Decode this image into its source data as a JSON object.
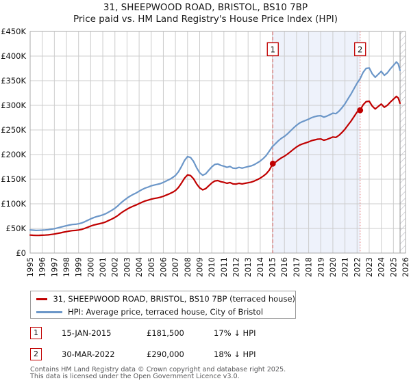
{
  "chart_data": {
    "type": "line",
    "title": "31, SHEEPWOOD ROAD, BRISTOL, BS10 7BP",
    "subtitle": "Price paid vs. HM Land Registry's House Price Index (HPI)",
    "xlabel": "",
    "ylabel": "",
    "xlim": [
      1995,
      2026
    ],
    "ylim_gbp": [
      0,
      450000
    ],
    "grid": true,
    "x_ticks": [
      1995,
      1996,
      1997,
      1998,
      1999,
      2000,
      2001,
      2002,
      2003,
      2004,
      2005,
      2006,
      2007,
      2008,
      2009,
      2010,
      2011,
      2012,
      2013,
      2014,
      2015,
      2016,
      2017,
      2018,
      2019,
      2020,
      2021,
      2022,
      2023,
      2024,
      2025,
      2026
    ],
    "y_ticks_gbpk": [
      [
        0,
        "£0"
      ],
      [
        50,
        "£50K"
      ],
      [
        100,
        "£100K"
      ],
      [
        150,
        "£150K"
      ],
      [
        200,
        "£200K"
      ],
      [
        250,
        "£250K"
      ],
      [
        300,
        "£300K"
      ],
      [
        350,
        "£350K"
      ],
      [
        400,
        "£400K"
      ],
      [
        450,
        "£450K"
      ]
    ],
    "shaded_span": {
      "from_year": 2015.04,
      "to_year": 2022.25
    },
    "hatch_span": {
      "from_year": 2025.55,
      "to_year": 2026
    },
    "series": [
      {
        "name": "31, SHEEPWOOD ROAD, BRISTOL, BS10 7BP (terraced house)",
        "color": "#c00000",
        "points_year_gbpk": [
          [
            1995,
            36.5
          ],
          [
            1995.25,
            36.1
          ],
          [
            1995.5,
            35.8
          ],
          [
            1995.75,
            36
          ],
          [
            1996,
            36.2
          ],
          [
            1996.25,
            36.5
          ],
          [
            1996.5,
            37
          ],
          [
            1996.75,
            37.8
          ],
          [
            1997,
            38.6
          ],
          [
            1997.25,
            39.8
          ],
          [
            1997.5,
            41
          ],
          [
            1997.75,
            42.3
          ],
          [
            1998,
            43.5
          ],
          [
            1998.25,
            44.7
          ],
          [
            1998.5,
            45.6
          ],
          [
            1998.75,
            46
          ],
          [
            1999,
            46.8
          ],
          [
            1999.25,
            48
          ],
          [
            1999.5,
            50
          ],
          [
            1999.75,
            52.4
          ],
          [
            2000,
            54.8
          ],
          [
            2000.25,
            56.8
          ],
          [
            2000.5,
            58.4
          ],
          [
            2000.75,
            59.7
          ],
          [
            2001,
            61.3
          ],
          [
            2001.25,
            63.4
          ],
          [
            2001.5,
            66.2
          ],
          [
            2001.75,
            69
          ],
          [
            2002,
            72.3
          ],
          [
            2002.25,
            76.4
          ],
          [
            2002.5,
            81.2
          ],
          [
            2002.75,
            85.3
          ],
          [
            2003,
            89
          ],
          [
            2003.25,
            92.3
          ],
          [
            2003.5,
            95.2
          ],
          [
            2003.75,
            97.7
          ],
          [
            2004,
            100.5
          ],
          [
            2004.25,
            103.4
          ],
          [
            2004.5,
            105.8
          ],
          [
            2004.75,
            107.5
          ],
          [
            2005,
            109.5
          ],
          [
            2005.25,
            110.8
          ],
          [
            2005.5,
            112
          ],
          [
            2005.75,
            113.3
          ],
          [
            2006,
            115.3
          ],
          [
            2006.25,
            117.8
          ],
          [
            2006.5,
            120.3
          ],
          [
            2006.75,
            123.2
          ],
          [
            2007,
            126.9
          ],
          [
            2007.25,
            133.2
          ],
          [
            2007.5,
            142.2
          ],
          [
            2007.75,
            152.1
          ],
          [
            2008,
            158.8
          ],
          [
            2008.25,
            157.3
          ],
          [
            2008.5,
            150.8
          ],
          [
            2008.75,
            140.3
          ],
          [
            2009,
            132.3
          ],
          [
            2009.25,
            128.3
          ],
          [
            2009.5,
            130.8
          ],
          [
            2009.75,
            136.5
          ],
          [
            2010,
            142.3
          ],
          [
            2010.25,
            146.4
          ],
          [
            2010.5,
            147.2
          ],
          [
            2010.75,
            144.8
          ],
          [
            2011,
            143.6
          ],
          [
            2011.25,
            141.6
          ],
          [
            2011.5,
            143.2
          ],
          [
            2011.75,
            140.4
          ],
          [
            2012,
            140
          ],
          [
            2012.25,
            141.6
          ],
          [
            2012.5,
            140.4
          ],
          [
            2012.75,
            141.6
          ],
          [
            2013,
            142.8
          ],
          [
            2013.25,
            144
          ],
          [
            2013.5,
            146.1
          ],
          [
            2013.75,
            148.9
          ],
          [
            2014,
            152.2
          ],
          [
            2014.25,
            156.3
          ],
          [
            2014.5,
            161.1
          ],
          [
            2014.75,
            168.4
          ],
          [
            2015,
            179.3
          ],
          [
            2015.04,
            181.5
          ],
          [
            2015.25,
            184.3
          ],
          [
            2015.5,
            189.2
          ],
          [
            2015.75,
            193.4
          ],
          [
            2016,
            196.7
          ],
          [
            2016.25,
            200.9
          ],
          [
            2016.5,
            205.8
          ],
          [
            2016.75,
            210.8
          ],
          [
            2017,
            215.4
          ],
          [
            2017.25,
            219.1
          ],
          [
            2017.5,
            221.6
          ],
          [
            2017.75,
            223.7
          ],
          [
            2018,
            225.8
          ],
          [
            2018.25,
            228.3
          ],
          [
            2018.5,
            229.9
          ],
          [
            2018.75,
            231.2
          ],
          [
            2019,
            231.6
          ],
          [
            2019.25,
            229.1
          ],
          [
            2019.5,
            230.7
          ],
          [
            2019.75,
            233.2
          ],
          [
            2020,
            235.7
          ],
          [
            2020.25,
            234.9
          ],
          [
            2020.5,
            239
          ],
          [
            2020.75,
            244.9
          ],
          [
            2021,
            251.5
          ],
          [
            2021.25,
            259.8
          ],
          [
            2021.5,
            268.1
          ],
          [
            2021.75,
            277.2
          ],
          [
            2022,
            286.4
          ],
          [
            2022.25,
            290
          ],
          [
            2022.5,
            301
          ],
          [
            2022.75,
            307.5
          ],
          [
            2023,
            308.3
          ],
          [
            2023.25,
            298.5
          ],
          [
            2023.5,
            292.7
          ],
          [
            2023.75,
            297.7
          ],
          [
            2024,
            302.6
          ],
          [
            2024.25,
            296
          ],
          [
            2024.5,
            300.1
          ],
          [
            2024.75,
            306.7
          ],
          [
            2025,
            312.4
          ],
          [
            2025.25,
            318.2
          ],
          [
            2025.4,
            314.9
          ],
          [
            2025.55,
            304.2
          ]
        ]
      },
      {
        "name": "HPI: Average price, terraced house, City of Bristol",
        "color": "#6b96c8",
        "points_year_gbpk": [
          [
            1995,
            47
          ],
          [
            1995.25,
            46.5
          ],
          [
            1995.5,
            46
          ],
          [
            1995.75,
            46.3
          ],
          [
            1996,
            46.5
          ],
          [
            1996.25,
            47
          ],
          [
            1996.5,
            47.5
          ],
          [
            1996.75,
            48.5
          ],
          [
            1997,
            49.5
          ],
          [
            1997.25,
            51
          ],
          [
            1997.5,
            52.5
          ],
          [
            1997.75,
            54
          ],
          [
            1998,
            55.5
          ],
          [
            1998.25,
            57
          ],
          [
            1998.5,
            58
          ],
          [
            1998.75,
            58.5
          ],
          [
            1999,
            59.5
          ],
          [
            1999.25,
            61
          ],
          [
            1999.5,
            63.5
          ],
          [
            1999.75,
            66.5
          ],
          [
            2000,
            69.5
          ],
          [
            2000.25,
            72
          ],
          [
            2000.5,
            74
          ],
          [
            2000.75,
            75.5
          ],
          [
            2001,
            77.5
          ],
          [
            2001.25,
            80
          ],
          [
            2001.5,
            83.5
          ],
          [
            2001.75,
            87
          ],
          [
            2002,
            91
          ],
          [
            2002.25,
            96
          ],
          [
            2002.5,
            102
          ],
          [
            2002.75,
            107
          ],
          [
            2003,
            111.5
          ],
          [
            2003.25,
            115.5
          ],
          [
            2003.5,
            119
          ],
          [
            2003.75,
            122
          ],
          [
            2004,
            125.5
          ],
          [
            2004.25,
            129
          ],
          [
            2004.5,
            132
          ],
          [
            2004.75,
            134
          ],
          [
            2005,
            136.5
          ],
          [
            2005.25,
            138
          ],
          [
            2005.5,
            139.5
          ],
          [
            2005.75,
            141
          ],
          [
            2006,
            143.5
          ],
          [
            2006.25,
            146.5
          ],
          [
            2006.5,
            149.5
          ],
          [
            2006.75,
            153
          ],
          [
            2007,
            157.5
          ],
          [
            2007.25,
            165
          ],
          [
            2007.5,
            176
          ],
          [
            2007.75,
            188
          ],
          [
            2008,
            196
          ],
          [
            2008.25,
            194
          ],
          [
            2008.5,
            186
          ],
          [
            2008.75,
            173
          ],
          [
            2009,
            163
          ],
          [
            2009.25,
            158
          ],
          [
            2009.5,
            161
          ],
          [
            2009.75,
            168
          ],
          [
            2010,
            175
          ],
          [
            2010.25,
            180
          ],
          [
            2010.5,
            181
          ],
          [
            2010.75,
            178
          ],
          [
            2011,
            176.5
          ],
          [
            2011.25,
            174
          ],
          [
            2011.5,
            176
          ],
          [
            2011.75,
            172.5
          ],
          [
            2012,
            172
          ],
          [
            2012.25,
            174
          ],
          [
            2012.5,
            172.5
          ],
          [
            2012.75,
            174
          ],
          [
            2013,
            175.5
          ],
          [
            2013.25,
            177
          ],
          [
            2013.5,
            179.5
          ],
          [
            2013.75,
            183
          ],
          [
            2014,
            187
          ],
          [
            2014.25,
            192
          ],
          [
            2014.5,
            198
          ],
          [
            2014.75,
            207
          ],
          [
            2015,
            216
          ],
          [
            2015.25,
            222
          ],
          [
            2015.5,
            228
          ],
          [
            2015.75,
            233
          ],
          [
            2016,
            237
          ],
          [
            2016.25,
            242
          ],
          [
            2016.5,
            248
          ],
          [
            2016.75,
            254
          ],
          [
            2017,
            259.5
          ],
          [
            2017.25,
            264
          ],
          [
            2017.5,
            267
          ],
          [
            2017.75,
            269.5
          ],
          [
            2018,
            272
          ],
          [
            2018.25,
            275
          ],
          [
            2018.5,
            277
          ],
          [
            2018.75,
            278.5
          ],
          [
            2019,
            279
          ],
          [
            2019.25,
            276
          ],
          [
            2019.5,
            278
          ],
          [
            2019.75,
            281
          ],
          [
            2020,
            284
          ],
          [
            2020.25,
            283
          ],
          [
            2020.5,
            288
          ],
          [
            2020.75,
            295
          ],
          [
            2021,
            303
          ],
          [
            2021.25,
            313
          ],
          [
            2021.5,
            323
          ],
          [
            2021.75,
            334
          ],
          [
            2022,
            345
          ],
          [
            2022.25,
            354
          ],
          [
            2022.5,
            367
          ],
          [
            2022.75,
            375
          ],
          [
            2023,
            376
          ],
          [
            2023.25,
            364
          ],
          [
            2023.5,
            357
          ],
          [
            2023.75,
            363
          ],
          [
            2024,
            369
          ],
          [
            2024.25,
            361
          ],
          [
            2024.5,
            366
          ],
          [
            2024.75,
            374
          ],
          [
            2025,
            381
          ],
          [
            2025.25,
            388
          ],
          [
            2025.4,
            384
          ],
          [
            2025.55,
            371
          ]
        ]
      }
    ],
    "markers": [
      {
        "number": "1",
        "year": 2015.04,
        "value_gbpk": 181.5,
        "dash": "5,3"
      },
      {
        "number": "2",
        "year": 2022.25,
        "value_gbpk": 290,
        "dash": "1.5,2.6"
      }
    ]
  },
  "legend": {
    "items": [
      {
        "label": "31, SHEEPWOOD ROAD, BRISTOL, BS10 7BP (terraced house)",
        "color": "#c00000"
      },
      {
        "label": "HPI: Average price, terraced house, City of Bristol",
        "color": "#6b96c8"
      }
    ]
  },
  "transactions": [
    {
      "number": "1",
      "date": "15-JAN-2015",
      "price": "£181,500",
      "vs_hpi": "17% ↓ HPI"
    },
    {
      "number": "2",
      "date": "30-MAR-2022",
      "price": "£290,000",
      "vs_hpi": "18% ↓ HPI"
    }
  ],
  "footer": {
    "line1": "Contains HM Land Registry data © Crown copyright and database right 2025.",
    "line2": "This data is licensed under the Open Government Licence v3.0."
  },
  "colors": {
    "grid": "#cccccc",
    "plot_border": "#a8a8a8",
    "marker_line": "#e87e7e",
    "sale_dot": "#c00000",
    "shade": "#eef2fb",
    "hatch": "#b9b9c2",
    "marker_box_border": "#c00000",
    "footer_text": "#58585a"
  }
}
